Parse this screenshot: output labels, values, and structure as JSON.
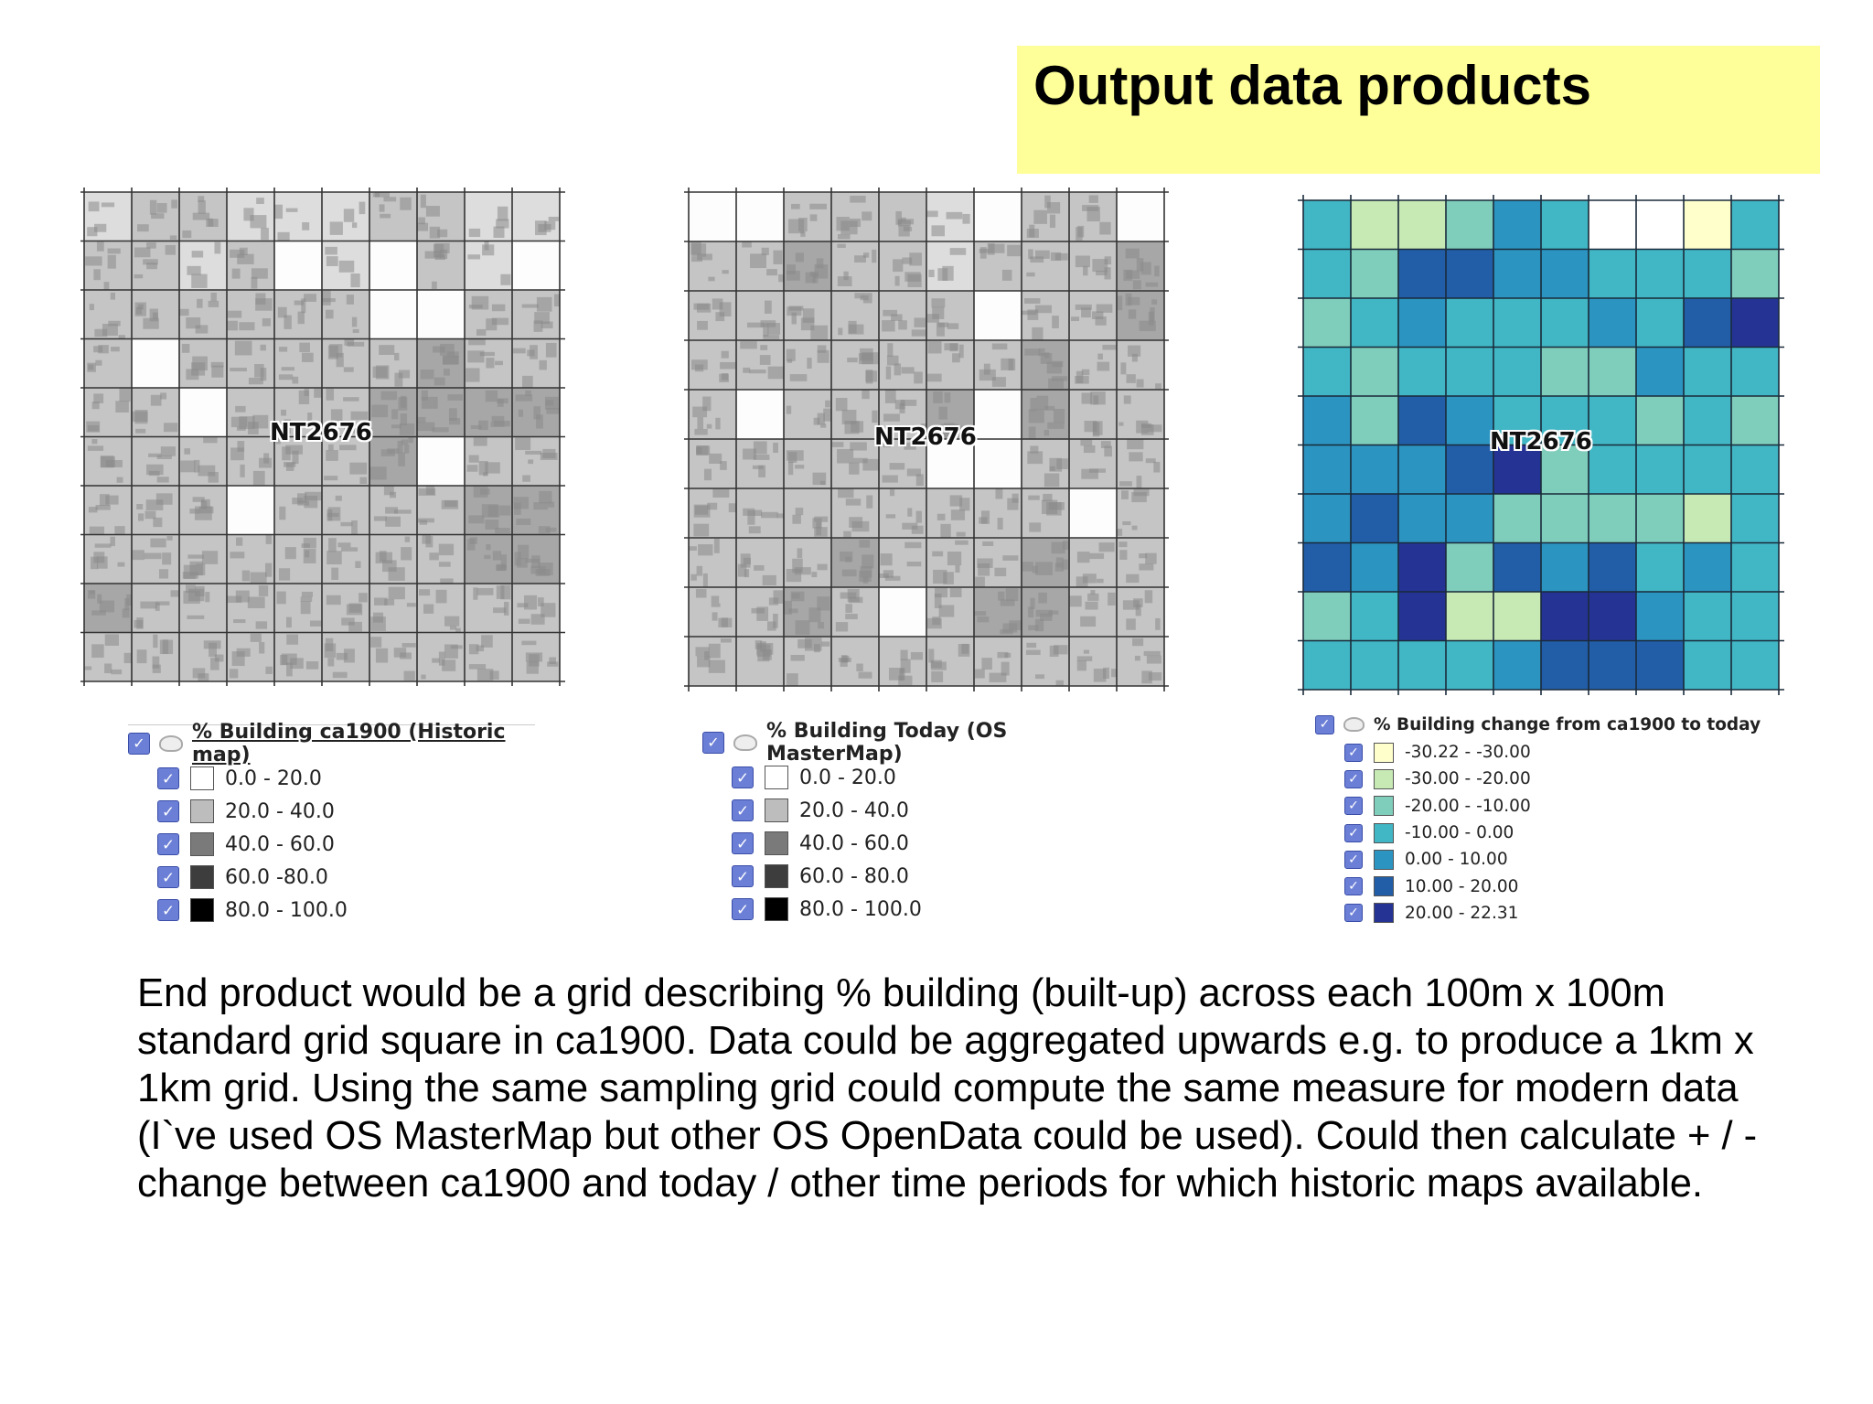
{
  "title": "Output data products",
  "maps": [
    {
      "label": "NT2676",
      "legend_title": "% Building ca1900 (Historic map)",
      "legend_items": [
        {
          "label": "0.0 - 20.0",
          "color": "#ffffff"
        },
        {
          "label": "20.0 - 40.0",
          "color": "#bdbdbd"
        },
        {
          "label": "40.0 - 60.0",
          "color": "#7a7a7a"
        },
        {
          "label": "60.0 -80.0",
          "color": "#3d3d3d"
        },
        {
          "label": "80.0 - 100.0",
          "color": "#000000"
        }
      ]
    },
    {
      "label": "NT2676",
      "legend_title": "% Building Today (OS MasterMap)",
      "legend_items": [
        {
          "label": "0.0 - 20.0",
          "color": "#ffffff"
        },
        {
          "label": "20.0 - 40.0",
          "color": "#bdbdbd"
        },
        {
          "label": "40.0 - 60.0",
          "color": "#7a7a7a"
        },
        {
          "label": "60.0 - 80.0",
          "color": "#3d3d3d"
        },
        {
          "label": "80.0 - 100.0",
          "color": "#000000"
        }
      ]
    },
    {
      "label": "NT2676",
      "legend_title": "% Building change from ca1900 to today",
      "legend_items": [
        {
          "label": "-30.22 - -30.00",
          "color": "#ffffcc"
        },
        {
          "label": "-30.00 - -20.00",
          "color": "#c7e9b4"
        },
        {
          "label": "-20.00 - -10.00",
          "color": "#7fcdbb"
        },
        {
          "label": "-10.00 - 0.00",
          "color": "#41b6c4"
        },
        {
          "label": "0.00 - 10.00",
          "color": "#2c94c1"
        },
        {
          "label": "10.00 - 20.00",
          "color": "#225ea8"
        },
        {
          "label": "20.00 - 22.31",
          "color": "#253494"
        }
      ]
    }
  ],
  "body_text": "End product would be a grid describing % building (built-up) across each 100m x 100m standard grid square in ca1900. Data could be aggregated upwards e.g. to produce a 1km x 1km grid. Using the same sampling grid could compute the same measure for modern data (I`ve used OS MasterMap but other OS OpenData could be used). Could then calculate + / - change between ca1900 and today / other time periods for which historic maps available."
}
